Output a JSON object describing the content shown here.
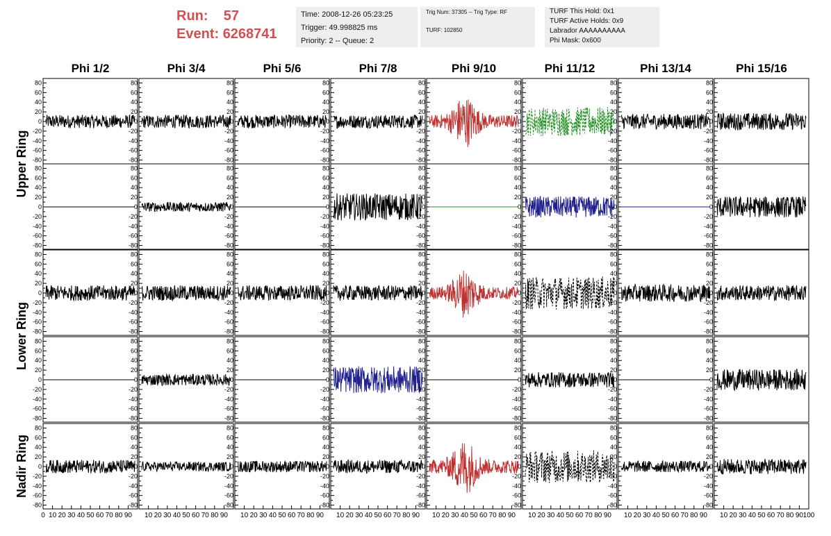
{
  "header": {
    "run_label": "Run:",
    "run_value": "57",
    "event_label": "Event:",
    "event_value": "6268741",
    "time": "Time: 2008-12-26 05:23:25",
    "trigger": "Trigger: 49.998825 ms",
    "priority": "Priority: 2 -- Queue: 2",
    "trig_num": "Trig Num: 37305 -- Trig Type: RF",
    "turf": "TURF: 102850",
    "turf_hold": "TURF This Hold: 0x1",
    "turf_active": "TURF Active Holds: 0x9",
    "labrador": "Labrador AAAAAAAAAA",
    "phi_mask": "Phi Mask: 0x600"
  },
  "chart_data": {
    "type": "line",
    "columns": [
      "Phi 1/2",
      "Phi 3/4",
      "Phi 5/6",
      "Phi 7/8",
      "Phi 9/10",
      "Phi 11/12",
      "Phi 13/14",
      "Phi 15/16"
    ],
    "ring_labels": [
      {
        "label": "Upper Ring",
        "rows": [
          0,
          1
        ]
      },
      {
        "label": "Lower Ring",
        "rows": [
          2,
          3
        ]
      },
      {
        "label": "Nadir Ring",
        "rows": [
          4
        ]
      }
    ],
    "yticks": [
      "80",
      "60",
      "40",
      "20",
      "0",
      "-20",
      "-40",
      "-60",
      "-80"
    ],
    "ylim": [
      -85,
      85
    ],
    "xlim": [
      0,
      100
    ],
    "xticks": [
      "0",
      "10",
      "20",
      "30",
      "40",
      "50",
      "60",
      "70",
      "80",
      "90",
      "100"
    ],
    "colors": {
      "default": "#000000",
      "red": "#c03030",
      "green": "#209020",
      "blue": "#202090"
    },
    "panels": [
      [
        {
          "amp": 14,
          "color": "default"
        },
        {
          "amp": 14,
          "color": "default"
        },
        {
          "amp": 14,
          "color": "default"
        },
        {
          "amp": 14,
          "color": "default"
        },
        {
          "amp": 30,
          "color": "red",
          "pulse": true
        },
        {
          "amp": 30,
          "color": "green",
          "dashed": true
        },
        {
          "amp": 16,
          "color": "default"
        },
        {
          "amp": 18,
          "color": "default"
        }
      ],
      [
        {
          "amp": 0,
          "color": "default"
        },
        {
          "amp": 10,
          "color": "default"
        },
        {
          "amp": 0,
          "color": "default"
        },
        {
          "amp": 28,
          "color": "default"
        },
        {
          "amp": 0,
          "color": "green"
        },
        {
          "amp": 22,
          "color": "blue"
        },
        {
          "amp": 0,
          "color": "blue"
        },
        {
          "amp": 22,
          "color": "default"
        }
      ],
      [
        {
          "amp": 16,
          "color": "default"
        },
        {
          "amp": 16,
          "color": "default"
        },
        {
          "amp": 16,
          "color": "default"
        },
        {
          "amp": 16,
          "color": "default"
        },
        {
          "amp": 28,
          "color": "red",
          "pulse": true
        },
        {
          "amp": 34,
          "color": "default",
          "dashed": true
        },
        {
          "amp": 18,
          "color": "default"
        },
        {
          "amp": 16,
          "color": "default"
        }
      ],
      [
        {
          "amp": 0,
          "color": "default"
        },
        {
          "amp": 12,
          "color": "default"
        },
        {
          "amp": 0,
          "color": "default"
        },
        {
          "amp": 28,
          "color": "blue"
        },
        {
          "amp": 0,
          "color": "default"
        },
        {
          "amp": 16,
          "color": "default"
        },
        {
          "amp": 0,
          "color": "default"
        },
        {
          "amp": 22,
          "color": "default"
        }
      ],
      [
        {
          "amp": 14,
          "color": "default"
        },
        {
          "amp": 10,
          "color": "default"
        },
        {
          "amp": 12,
          "color": "default"
        },
        {
          "amp": 14,
          "color": "default"
        },
        {
          "amp": 32,
          "color": "red",
          "pulse": true
        },
        {
          "amp": 34,
          "color": "default",
          "dashed": true
        },
        {
          "amp": 12,
          "color": "default"
        },
        {
          "amp": 16,
          "color": "default"
        }
      ]
    ]
  }
}
